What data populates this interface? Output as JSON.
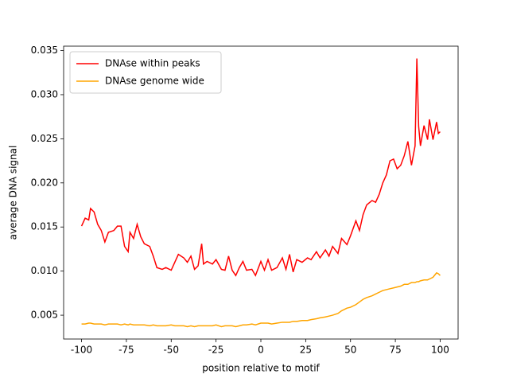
{
  "chart_data": {
    "type": "line",
    "xlabel": "position relative to motif",
    "ylabel": "average DNA signal",
    "x": [
      -100,
      -98,
      -96,
      -95,
      -93,
      -91,
      -89,
      -87,
      -85,
      -82,
      -80,
      -78,
      -76,
      -74,
      -73,
      -71,
      -69,
      -67,
      -65,
      -62,
      -60,
      -58,
      -55,
      -53,
      -50,
      -48,
      -46,
      -43,
      -41,
      -39,
      -37,
      -35,
      -33,
      -32,
      -30,
      -27,
      -25,
      -22,
      -20,
      -18,
      -16,
      -14,
      -12,
      -10,
      -8,
      -5,
      -3,
      0,
      2,
      4,
      6,
      9,
      12,
      14,
      16,
      18,
      20,
      23,
      26,
      28,
      31,
      33,
      36,
      38,
      40,
      43,
      45,
      48,
      50,
      53,
      55,
      57,
      59,
      62,
      64,
      66,
      68,
      70,
      72,
      74,
      76,
      78,
      80,
      82,
      84,
      86,
      87,
      88,
      89,
      91,
      93,
      94,
      96,
      98,
      99,
      100
    ],
    "series": [
      {
        "name": "DNAse within peaks",
        "color": "#ff0000",
        "values": [
          0.0151,
          0.016,
          0.0158,
          0.0171,
          0.0167,
          0.0153,
          0.0146,
          0.0133,
          0.0144,
          0.0146,
          0.0151,
          0.0151,
          0.0128,
          0.0122,
          0.0144,
          0.0137,
          0.0153,
          0.0139,
          0.0131,
          0.0128,
          0.0117,
          0.0104,
          0.0102,
          0.0104,
          0.0101,
          0.011,
          0.0119,
          0.0115,
          0.011,
          0.0117,
          0.0102,
          0.0106,
          0.0131,
          0.0108,
          0.0111,
          0.0108,
          0.0113,
          0.0102,
          0.0101,
          0.0117,
          0.0101,
          0.0095,
          0.0104,
          0.0111,
          0.0101,
          0.0102,
          0.0095,
          0.0111,
          0.0101,
          0.0113,
          0.0101,
          0.0104,
          0.0115,
          0.0102,
          0.0119,
          0.0099,
          0.0113,
          0.011,
          0.0115,
          0.0113,
          0.0122,
          0.0115,
          0.0124,
          0.0117,
          0.0128,
          0.012,
          0.0137,
          0.013,
          0.014,
          0.0157,
          0.0146,
          0.0164,
          0.0175,
          0.018,
          0.0178,
          0.0187,
          0.02,
          0.0209,
          0.0225,
          0.0227,
          0.0216,
          0.022,
          0.0231,
          0.0247,
          0.022,
          0.0242,
          0.0341,
          0.0264,
          0.0242,
          0.0265,
          0.0249,
          0.0272,
          0.0249,
          0.0269,
          0.0256,
          0.0258
        ]
      },
      {
        "name": "DNAse genome wide",
        "color": "#ffa500",
        "values": [
          0.004,
          0.004,
          0.0041,
          0.0041,
          0.004,
          0.004,
          0.004,
          0.0039,
          0.004,
          0.004,
          0.004,
          0.0039,
          0.004,
          0.0039,
          0.004,
          0.0039,
          0.0039,
          0.0039,
          0.0039,
          0.0038,
          0.0039,
          0.0038,
          0.0038,
          0.0038,
          0.0039,
          0.0038,
          0.0038,
          0.0038,
          0.0037,
          0.0038,
          0.0037,
          0.0038,
          0.0038,
          0.0038,
          0.0038,
          0.0038,
          0.0039,
          0.0037,
          0.0038,
          0.0038,
          0.0038,
          0.0037,
          0.0038,
          0.0039,
          0.0039,
          0.004,
          0.0039,
          0.0041,
          0.0041,
          0.0041,
          0.004,
          0.0041,
          0.0042,
          0.0042,
          0.0042,
          0.0043,
          0.0043,
          0.0044,
          0.0044,
          0.0045,
          0.0046,
          0.0047,
          0.0048,
          0.0049,
          0.005,
          0.0052,
          0.0055,
          0.0058,
          0.0059,
          0.0062,
          0.0065,
          0.0068,
          0.007,
          0.0072,
          0.0074,
          0.0076,
          0.0078,
          0.0079,
          0.008,
          0.0081,
          0.0082,
          0.0083,
          0.0085,
          0.0085,
          0.0087,
          0.0087,
          0.0088,
          0.0088,
          0.0089,
          0.009,
          0.009,
          0.0091,
          0.0093,
          0.0098,
          0.0097,
          0.0095
        ]
      }
    ],
    "xlim": [
      -110,
      110
    ],
    "xticks": [
      -100,
      -75,
      -50,
      -25,
      0,
      25,
      50,
      75,
      100
    ],
    "ylim": [
      0.0023,
      0.0355
    ],
    "yticks": [
      0.005,
      {
        "value": 0.01,
        "label": "0.010"
      },
      0.015,
      {
        "value": 0.02,
        "label": "0.020"
      },
      0.025,
      {
        "value": 0.03,
        "label": "0.030"
      },
      0.035
    ],
    "legend": "upper left"
  }
}
